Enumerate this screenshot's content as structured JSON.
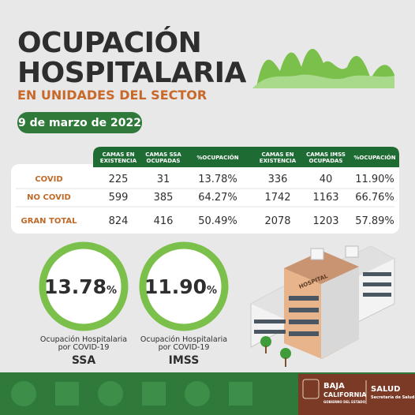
{
  "header": {
    "title_lines": [
      "OCUPACIÓN",
      "HOSPITALARIA"
    ],
    "subtitle": "EN UNIDADES DEL SECTOR",
    "date": "9 de marzo de 2022"
  },
  "table": {
    "columns": [
      [
        "CAMAS EN",
        "EXISTENCIA"
      ],
      [
        "CAMAS SSA",
        "OCUPADAS"
      ],
      [
        "%OCUPACIÓN"
      ],
      [
        "CAMAS EN",
        "EXISTENCIA"
      ],
      [
        "CAMAS IMSS",
        "OCUPADAS"
      ],
      [
        "%OCUPACIÓN"
      ]
    ],
    "rows": [
      [
        "COVID",
        "225",
        "31",
        "13.78%",
        "336",
        "40",
        "11.90%"
      ],
      [
        "NO COVID",
        "599",
        "385",
        "64.27%",
        "1742",
        "1163",
        "66.76%"
      ],
      [
        "GRAN TOTAL",
        "824",
        "416",
        "50.49%",
        "2078",
        "1203",
        "57.89%"
      ]
    ]
  },
  "gauges": [
    {
      "value": "13.78",
      "unit": "%",
      "label_lines": [
        "Ocupación Hospitalaria",
        "por COVID-19"
      ],
      "org": "SSA"
    },
    {
      "value": "11.90",
      "unit": "%",
      "label_lines": [
        "Ocupación Hospitalaria",
        "por COVID-19"
      ],
      "org": "IMSS"
    }
  ],
  "building_sign": "HOSPITAL",
  "footer": {
    "state_lines": [
      "BAJA",
      "CALIFORNIA"
    ],
    "state_sub": "GOBIERNO DEL ESTADO",
    "agency": "SALUD",
    "agency_sub": "Secretaría de Salud"
  }
}
